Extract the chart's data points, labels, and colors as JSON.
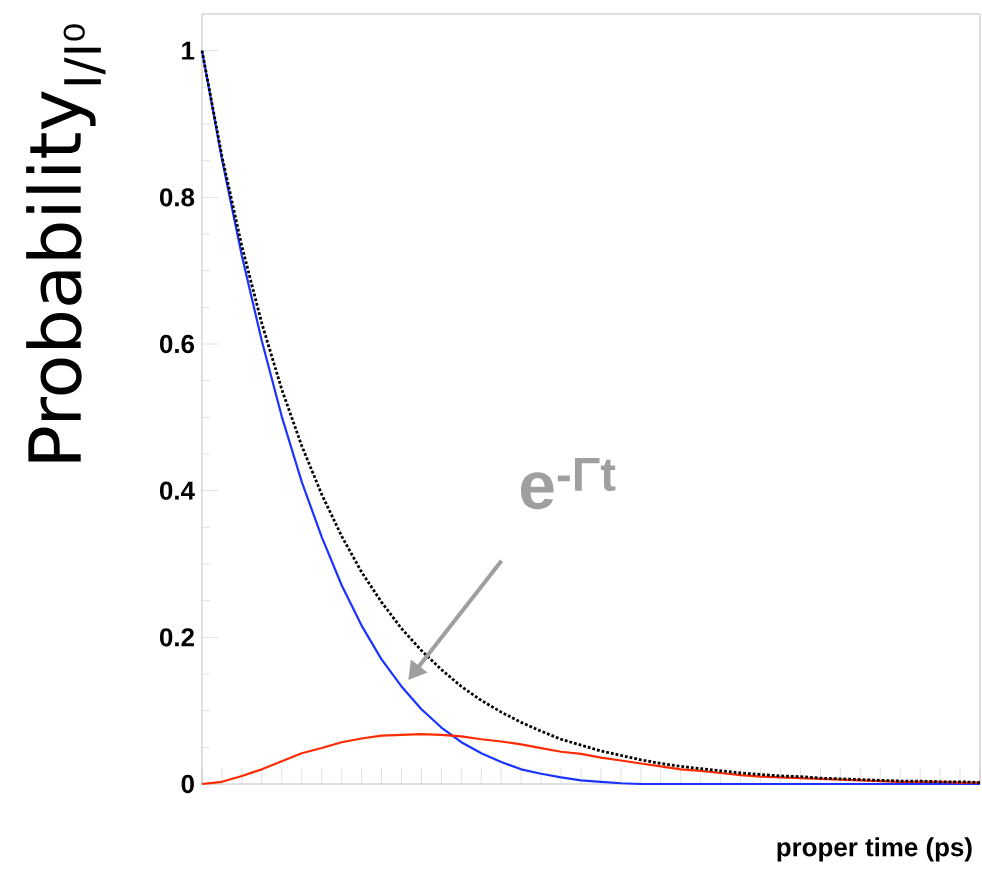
{
  "chart_data": {
    "type": "line",
    "ylabel": "Probability$_{I/I⁰}$",
    "xlabel": "proper time (ps)",
    "annotations": [
      "e$^{-Γt}$"
    ],
    "categories": [
      null,
      null,
      null,
      null,
      null,
      null,
      null,
      null,
      null,
      null,
      null,
      null,
      null,
      null,
      null,
      null,
      null,
      null,
      null,
      null,
      null,
      null,
      null,
      null,
      null,
      null,
      null,
      null,
      null,
      null,
      null,
      null,
      null,
      null,
      null,
      null,
      null,
      null,
      null,
      null
    ],
    "ylim": [
      0,
      1.05
    ],
    "yticks": [
      0,
      0.2,
      0.4,
      0.6,
      0.8,
      1
    ],
    "tick_labels": "y",
    "series": [
      {
        "color": "#1a33ff",
        "line_style": "solid",
        "values": [
          1,
          0.852,
          0.72,
          0.604,
          0.501,
          0.412,
          0.337,
          0.271,
          0.216,
          0.17,
          0.133,
          0.102,
          0.077,
          0.057,
          0.042,
          0.03,
          0.02,
          0.014,
          0.009,
          0.005,
          0.003,
          0.001,
          0,
          0,
          0,
          0,
          0,
          0,
          0,
          0,
          0,
          0,
          0,
          0,
          0,
          0,
          0,
          0,
          0,
          0
        ]
      },
      {
        "color": "#ff2a00",
        "line_style": "solid",
        "values": [
          0,
          0.003,
          0.011,
          0.02,
          0.031,
          0.042,
          0.049,
          0.057,
          0.062,
          0.066,
          0.067,
          0.068,
          0.067,
          0.065,
          0.061,
          0.058,
          0.054,
          0.049,
          0.044,
          0.041,
          0.036,
          0.032,
          0.028,
          0.024,
          0.02,
          0.018,
          0.015,
          0.012,
          0.01,
          0.009,
          0.008,
          0.007,
          0.006,
          0.005,
          0.004,
          0.003,
          0.003,
          0.003,
          0.002,
          0.002
        ]
      },
      {
        "color": "#000000",
        "line_style": "dotted",
        "values": [
          1,
          0.856,
          0.733,
          0.628,
          0.538,
          0.461,
          0.395,
          0.338,
          0.289,
          0.248,
          0.212,
          0.182,
          0.156,
          0.133,
          0.114,
          0.098,
          0.084,
          0.072,
          0.061,
          0.053,
          0.045,
          0.039,
          0.033,
          0.028,
          0.024,
          0.021,
          0.018,
          0.015,
          0.013,
          0.011,
          0.01,
          0.008,
          0.007,
          0.006,
          0.005,
          0.004,
          0.004,
          0.003,
          0.003,
          0.002
        ]
      }
    ]
  }
}
